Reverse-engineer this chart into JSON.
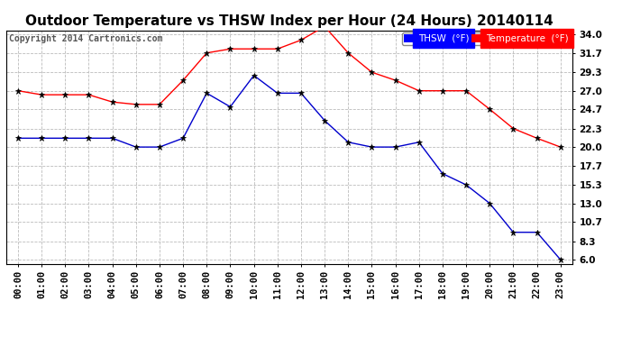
{
  "title": "Outdoor Temperature vs THSW Index per Hour (24 Hours) 20140114",
  "copyright": "Copyright 2014 Cartronics.com",
  "hours": [
    "00:00",
    "01:00",
    "02:00",
    "03:00",
    "04:00",
    "05:00",
    "06:00",
    "07:00",
    "08:00",
    "09:00",
    "10:00",
    "11:00",
    "12:00",
    "13:00",
    "14:00",
    "15:00",
    "16:00",
    "17:00",
    "18:00",
    "19:00",
    "20:00",
    "21:00",
    "22:00",
    "23:00"
  ],
  "temperature": [
    27.0,
    26.5,
    26.5,
    26.5,
    25.6,
    25.3,
    25.3,
    28.3,
    31.7,
    32.2,
    32.2,
    32.2,
    33.3,
    35.0,
    31.7,
    29.3,
    28.3,
    27.0,
    27.0,
    27.0,
    24.7,
    22.3,
    21.1,
    20.0
  ],
  "thsw": [
    21.1,
    21.1,
    21.1,
    21.1,
    21.1,
    20.0,
    20.0,
    21.1,
    26.7,
    25.0,
    28.9,
    26.7,
    26.7,
    23.3,
    20.6,
    20.0,
    20.0,
    20.6,
    16.7,
    15.3,
    13.0,
    9.4,
    9.4,
    6.0
  ],
  "temp_color": "#ff0000",
  "thsw_color": "#0000cc",
  "marker_color": "#000000",
  "background_color": "#ffffff",
  "grid_color": "#bbbbbb",
  "ylim_min": 6.0,
  "ylim_max": 34.0,
  "yticks": [
    6.0,
    8.3,
    10.7,
    13.0,
    15.3,
    17.7,
    20.0,
    22.3,
    24.7,
    27.0,
    29.3,
    31.7,
    34.0
  ],
  "legend_thsw_bg": "#0000ff",
  "legend_thsw_fg": "#ffffff",
  "legend_temp_bg": "#ff0000",
  "legend_temp_fg": "#ffffff",
  "title_fontsize": 11,
  "copyright_fontsize": 7,
  "tick_fontsize": 7.5
}
